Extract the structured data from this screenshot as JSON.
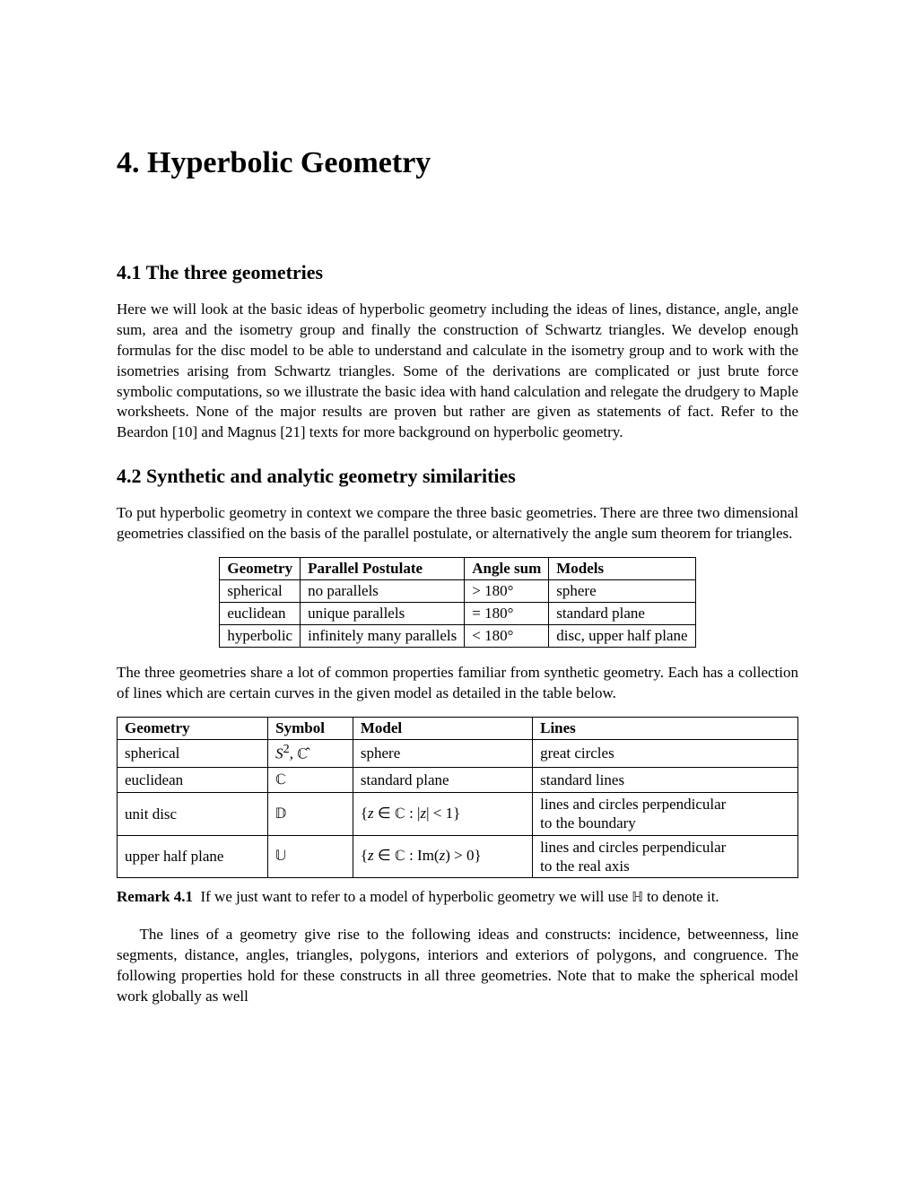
{
  "chapter": {
    "title": "4. Hyperbolic Geometry"
  },
  "section41": {
    "title": "4.1 The three geometries",
    "para1": "Here we will look at the basic ideas of hyperbolic geometry including the ideas of lines, distance, angle, angle sum, area and the isometry group and finally the construction of Schwartz triangles. We develop enough formulas for the disc model to be able to understand and calculate in the isometry group and to work with the isometries arising from Schwartz triangles. Some of the derivations are complicated or just brute force symbolic computations, so we illustrate the basic idea with hand calculation and relegate the drudgery to Maple worksheets. None of the major results are proven but rather are given as statements of fact. Refer to the Beardon [10] and Magnus [21] texts for more background on hyperbolic geometry."
  },
  "section42": {
    "title": "4.2 Synthetic and analytic geometry similarities",
    "para1": "To put hyperbolic geometry in context we compare the three basic geometries. There are three two dimensional geometries classified on the basis of the parallel postulate, or alternatively the angle sum theorem for triangles."
  },
  "table1": {
    "headers": [
      "Geometry",
      "Parallel Postulate",
      "Angle sum",
      "Models"
    ],
    "rows": [
      [
        "spherical",
        "no parallels",
        "> 180°",
        "sphere"
      ],
      [
        "euclidean",
        "unique parallels",
        "= 180°",
        "standard plane"
      ],
      [
        "hyperbolic",
        "infinitely many parallels",
        "< 180°",
        "disc, upper half plane"
      ]
    ]
  },
  "para_between": "The three geometries share a lot of common properties familiar from synthetic geometry. Each has a collection of lines which are certain curves in the given model as detailed in the table below.",
  "table2": {
    "headers": [
      "Geometry",
      "Symbol",
      "Model",
      "Lines"
    ],
    "rows": [
      {
        "geometry": "spherical",
        "symbol": "S², ℂ̂",
        "model": "sphere",
        "lines": "great circles"
      },
      {
        "geometry": "euclidean",
        "symbol": "ℂ",
        "model": "standard plane",
        "lines": "standard lines"
      },
      {
        "geometry": "unit disc",
        "symbol": "𝔻",
        "model": "{z ∈ ℂ : |z| < 1}",
        "lines": "lines and circles perpendicular to the boundary"
      },
      {
        "geometry": "upper half plane",
        "symbol": "𝕌",
        "model": "{z ∈ ℂ : Im(z) > 0}",
        "lines": "lines and circles perpendicular to the real axis"
      }
    ]
  },
  "remark": {
    "label": "Remark 4.1",
    "text": "If we just want to refer to a model of hyperbolic geometry we will use ℍ to denote it."
  },
  "para_last": "The lines of a geometry give rise to the following ideas and constructs: incidence, betweenness, line segments, distance, angles, triangles, polygons, interiors and exteriors of polygons, and congruence. The following properties hold for these constructs in all three geometries. Note that to make the spherical model work globally as well"
}
